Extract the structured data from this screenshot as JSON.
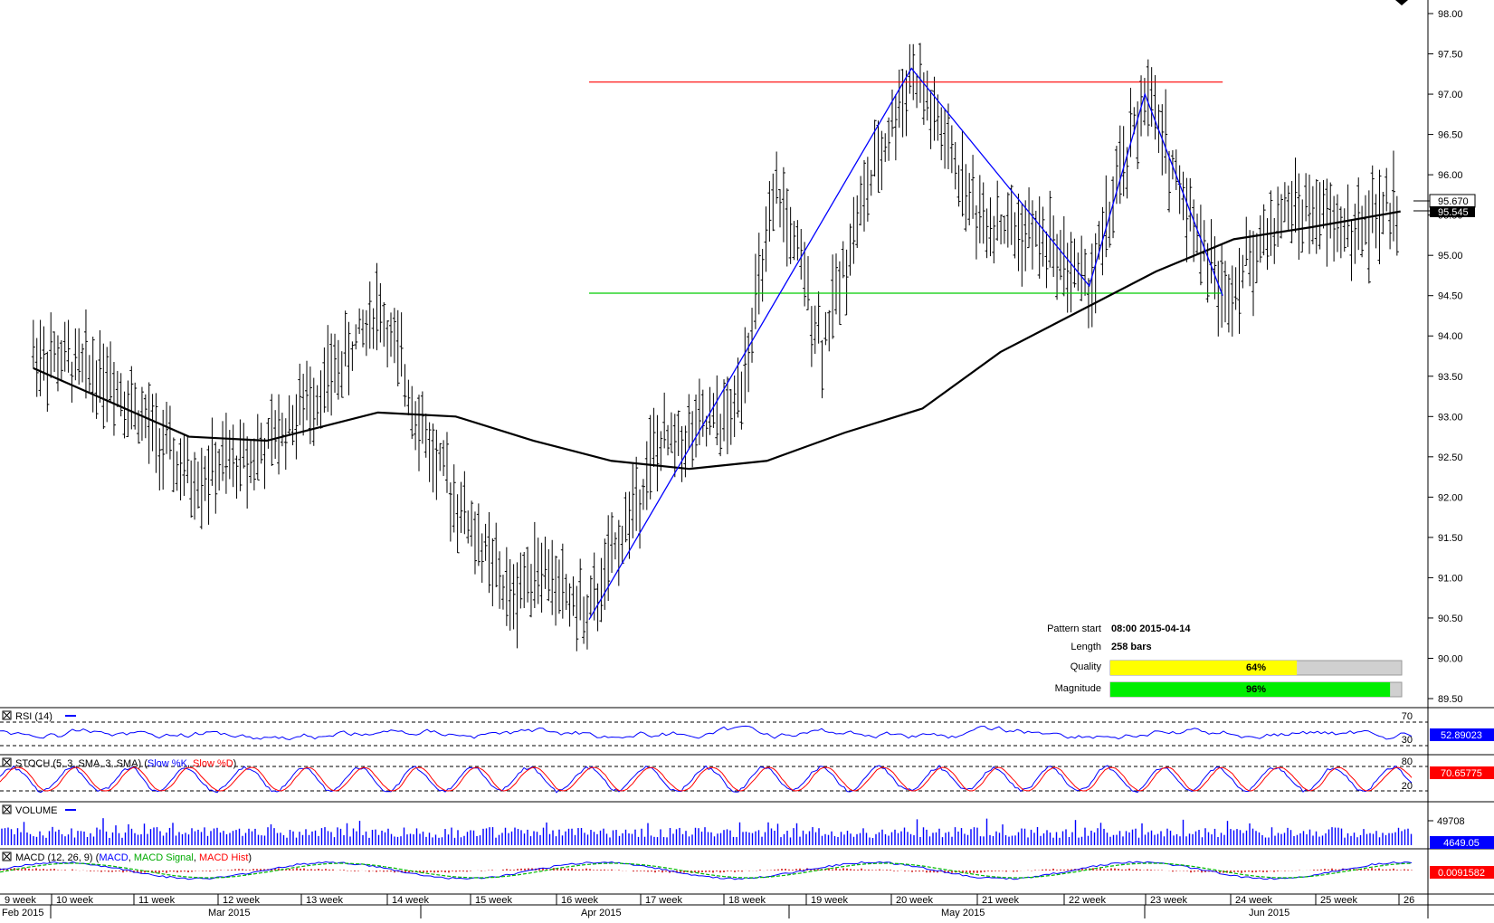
{
  "main": {
    "y_ticks": [
      "98.00",
      "97.50",
      "97.00",
      "96.50",
      "96.00",
      "95.50",
      "95.00",
      "94.50",
      "94.00",
      "93.50",
      "93.00",
      "92.50",
      "92.00",
      "91.50",
      "91.00",
      "90.50",
      "90.00",
      "89.50"
    ],
    "current_price": "95.670",
    "ma_price": "95.545",
    "resistance_level": 97.15,
    "support_level": 94.53,
    "colors": {
      "resistance": "#ff0000",
      "support": "#00cc00",
      "pattern": "#0000ff",
      "ma": "#000000",
      "bars": "#000000"
    }
  },
  "pattern_info": {
    "start_label": "Pattern start",
    "start_value": "08:00 2015-04-14",
    "length_label": "Length",
    "length_value": "258 bars",
    "quality_label": "Quality",
    "quality_value": "64%",
    "quality_fraction": 0.64,
    "magnitude_label": "Magnitude",
    "magnitude_value": "96%",
    "magnitude_fraction": 0.96
  },
  "panels": {
    "rsi": {
      "title": "RSI (14)",
      "value": "52.89023",
      "upper": "70",
      "lower": "30"
    },
    "stoch": {
      "title_prefix": "STOCH (5, 3, SMA, 3, SMA) (",
      "k": "Slow %K",
      "d": "Slow %D",
      "title_suffix": ")",
      "value": "70.65775",
      "upper": "80",
      "lower": "20"
    },
    "volume": {
      "title": "VOLUME",
      "tick": "49708",
      "value": "4649.05"
    },
    "macd": {
      "title_prefix": "MACD (12, 26, 9) (",
      "macd": "MACD",
      "signal": "MACD Signal",
      "hist": "MACD Hist",
      "title_suffix": ")",
      "value": "0.0091582"
    }
  },
  "x_axis": {
    "weeks": [
      "9 week",
      "10 week",
      "11 week",
      "12 week",
      "13 week",
      "14 week",
      "15 week",
      "16 week",
      "17 week",
      "18 week",
      "19 week",
      "20 week",
      "21 week",
      "22 week",
      "23 week",
      "24 week",
      "25 week",
      "26"
    ],
    "months": [
      "Feb 2015",
      "Mar 2015",
      "Apr 2015",
      "May 2015",
      "Jun 2015"
    ]
  },
  "chart_data": {
    "type": "line",
    "title": "",
    "xlabel": "",
    "ylabel": "",
    "ylim": [
      89.5,
      98.0
    ],
    "pattern": {
      "name": "Double top",
      "points": [
        {
          "date": "2015-04-14",
          "price": 90.48
        },
        {
          "date": "2015-05-13",
          "price": 97.32
        },
        {
          "date": "2015-05-29",
          "price": 94.62
        },
        {
          "date": "2015-06-03",
          "price": 97.0
        },
        {
          "date": "2015-06-10",
          "price": 94.5
        }
      ],
      "resistance": 97.15,
      "support": 94.53,
      "quality_pct": 64,
      "magnitude_pct": 96
    },
    "series": [
      {
        "name": "Price",
        "values": [
          [
            "2015-02-23",
            93.8
          ],
          [
            "2015-03-02",
            93.5
          ],
          [
            "2015-03-09",
            92.2
          ],
          [
            "2015-03-16",
            92.6
          ],
          [
            "2015-03-23",
            93.7
          ],
          [
            "2015-03-26",
            94.4
          ],
          [
            "2015-03-31",
            92.5
          ],
          [
            "2015-04-07",
            90.7
          ],
          [
            "2015-04-09",
            91.2
          ],
          [
            "2015-04-14",
            90.5
          ],
          [
            "2015-04-20",
            92.6
          ],
          [
            "2015-04-27",
            93.0
          ],
          [
            "2015-05-01",
            95.8
          ],
          [
            "2015-05-05",
            93.9
          ],
          [
            "2015-05-08",
            95.4
          ],
          [
            "2015-05-13",
            97.3
          ],
          [
            "2015-05-19",
            95.5
          ],
          [
            "2015-05-25",
            95.2
          ],
          [
            "2015-05-29",
            94.6
          ],
          [
            "2015-06-03",
            97.0
          ],
          [
            "2015-06-10",
            94.5
          ],
          [
            "2015-06-16",
            95.6
          ],
          [
            "2015-06-22",
            95.3
          ],
          [
            "2015-06-26",
            95.67
          ]
        ]
      },
      {
        "name": "MA",
        "values": [
          [
            "2015-02-23",
            93.6
          ],
          [
            "2015-03-09",
            92.75
          ],
          [
            "2015-03-16",
            92.7
          ],
          [
            "2015-03-26",
            93.05
          ],
          [
            "2015-04-02",
            93.0
          ],
          [
            "2015-04-09",
            92.7
          ],
          [
            "2015-04-16",
            92.45
          ],
          [
            "2015-04-23",
            92.35
          ],
          [
            "2015-04-30",
            92.45
          ],
          [
            "2015-05-07",
            92.8
          ],
          [
            "2015-05-14",
            93.1
          ],
          [
            "2015-05-21",
            93.8
          ],
          [
            "2015-05-28",
            94.3
          ],
          [
            "2015-06-04",
            94.8
          ],
          [
            "2015-06-11",
            95.2
          ],
          [
            "2015-06-18",
            95.35
          ],
          [
            "2015-06-26",
            95.545
          ]
        ]
      }
    ]
  }
}
